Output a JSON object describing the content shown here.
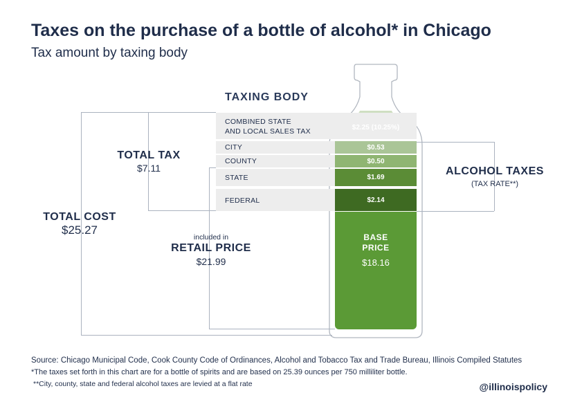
{
  "title": "Taxes on the purchase of a bottle of alcohol* in Chicago",
  "subtitle": "Tax amount by taxing body",
  "chart_data": {
    "type": "bar",
    "section_header": "TAXING BODY",
    "categories": [
      "COMBINED STATE AND LOCAL SALES TAX",
      "CITY",
      "COUNTY",
      "STATE",
      "FEDERAL",
      "BASE PRICE"
    ],
    "category_lines": [
      [
        "COMBINED STATE",
        "AND LOCAL SALES TAX"
      ],
      [
        "CITY"
      ],
      [
        "COUNTY"
      ],
      [
        "STATE"
      ],
      [
        "FEDERAL"
      ],
      [
        "BASE",
        "PRICE"
      ]
    ],
    "values": [
      2.25,
      0.53,
      0.5,
      1.69,
      2.14,
      18.16
    ],
    "value_labels": [
      "$2.25 (10.25%)",
      "$0.53",
      "$0.50",
      "$1.69",
      "$2.14",
      "$18.16"
    ],
    "colors": [
      "#cfdfc2",
      "#aac597",
      "#8fb572",
      "#5b8c36",
      "#3e6a22",
      "#5b9a36"
    ],
    "groups": {
      "total_tax": {
        "label": "TOTAL TAX",
        "value": "$7.11"
      },
      "total_cost": {
        "label": "TOTAL COST",
        "value": "$25.27"
      },
      "retail_price": {
        "prefix": "included in",
        "label": "RETAIL PRICE",
        "value": "$21.99"
      },
      "alcohol_taxes": {
        "label": "ALCOHOL TAXES",
        "note": "(TAX RATE**)"
      }
    }
  },
  "footer": {
    "source": "Source: Chicago Municipal Code, Cook County Code of Ordinances, Alcohol and Tobacco Tax and Trade Bureau, Illinois Compiled Statutes",
    "note1": "*The taxes set forth in this chart are for a bottle of spirits and are based on 25.39 ounces per 750 milliliter bottle.",
    "note2": "**City, county, state and federal alcohol taxes are levied at a flat rate",
    "handle": "@illinoispolicy"
  }
}
